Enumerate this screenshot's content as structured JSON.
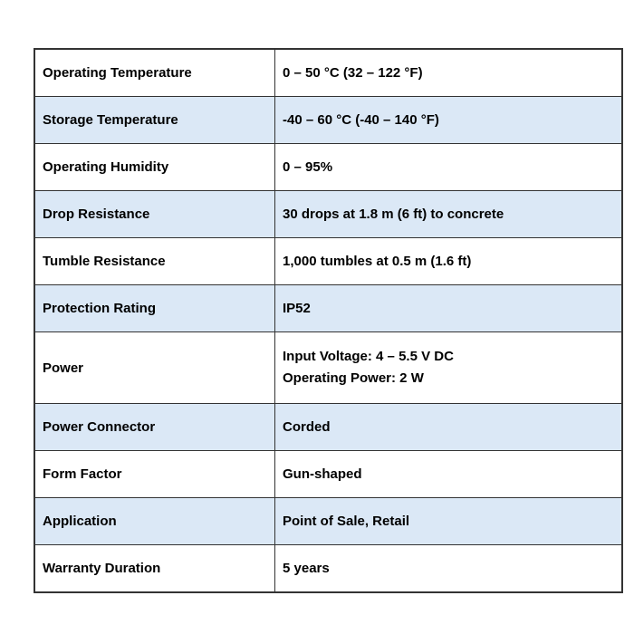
{
  "page": {
    "background": "#ffffff"
  },
  "colors": {
    "row_background": "#ffffff",
    "row_alt_background": "#dbe8f6",
    "border": "#333333",
    "text": "#000000"
  },
  "spec_table": {
    "rows": [
      {
        "label": "Operating Temperature",
        "value": "0 – 50 °C (32 – 122 °F)"
      },
      {
        "label": "Storage Temperature",
        "value": "-40 – 60 °C (-40 – 140 °F)"
      },
      {
        "label": "Operating Humidity",
        "value": "0 – 95%"
      },
      {
        "label": "Drop Resistance",
        "value": "30 drops at 1.8 m (6 ft) to concrete"
      },
      {
        "label": "Tumble Resistance",
        "value": "1,000 tumbles at 0.5 m (1.6 ft)"
      },
      {
        "label": "Protection Rating",
        "value": "IP52"
      },
      {
        "label": "Power",
        "value": "Input Voltage: 4 – 5.5 V DC\nOperating Power: 2 W"
      },
      {
        "label": "Power Connector",
        "value": "Corded"
      },
      {
        "label": "Form Factor",
        "value": "Gun-shaped"
      },
      {
        "label": "Application",
        "value": "Point of Sale, Retail"
      },
      {
        "label": "Warranty Duration",
        "value": "5 years"
      }
    ]
  }
}
